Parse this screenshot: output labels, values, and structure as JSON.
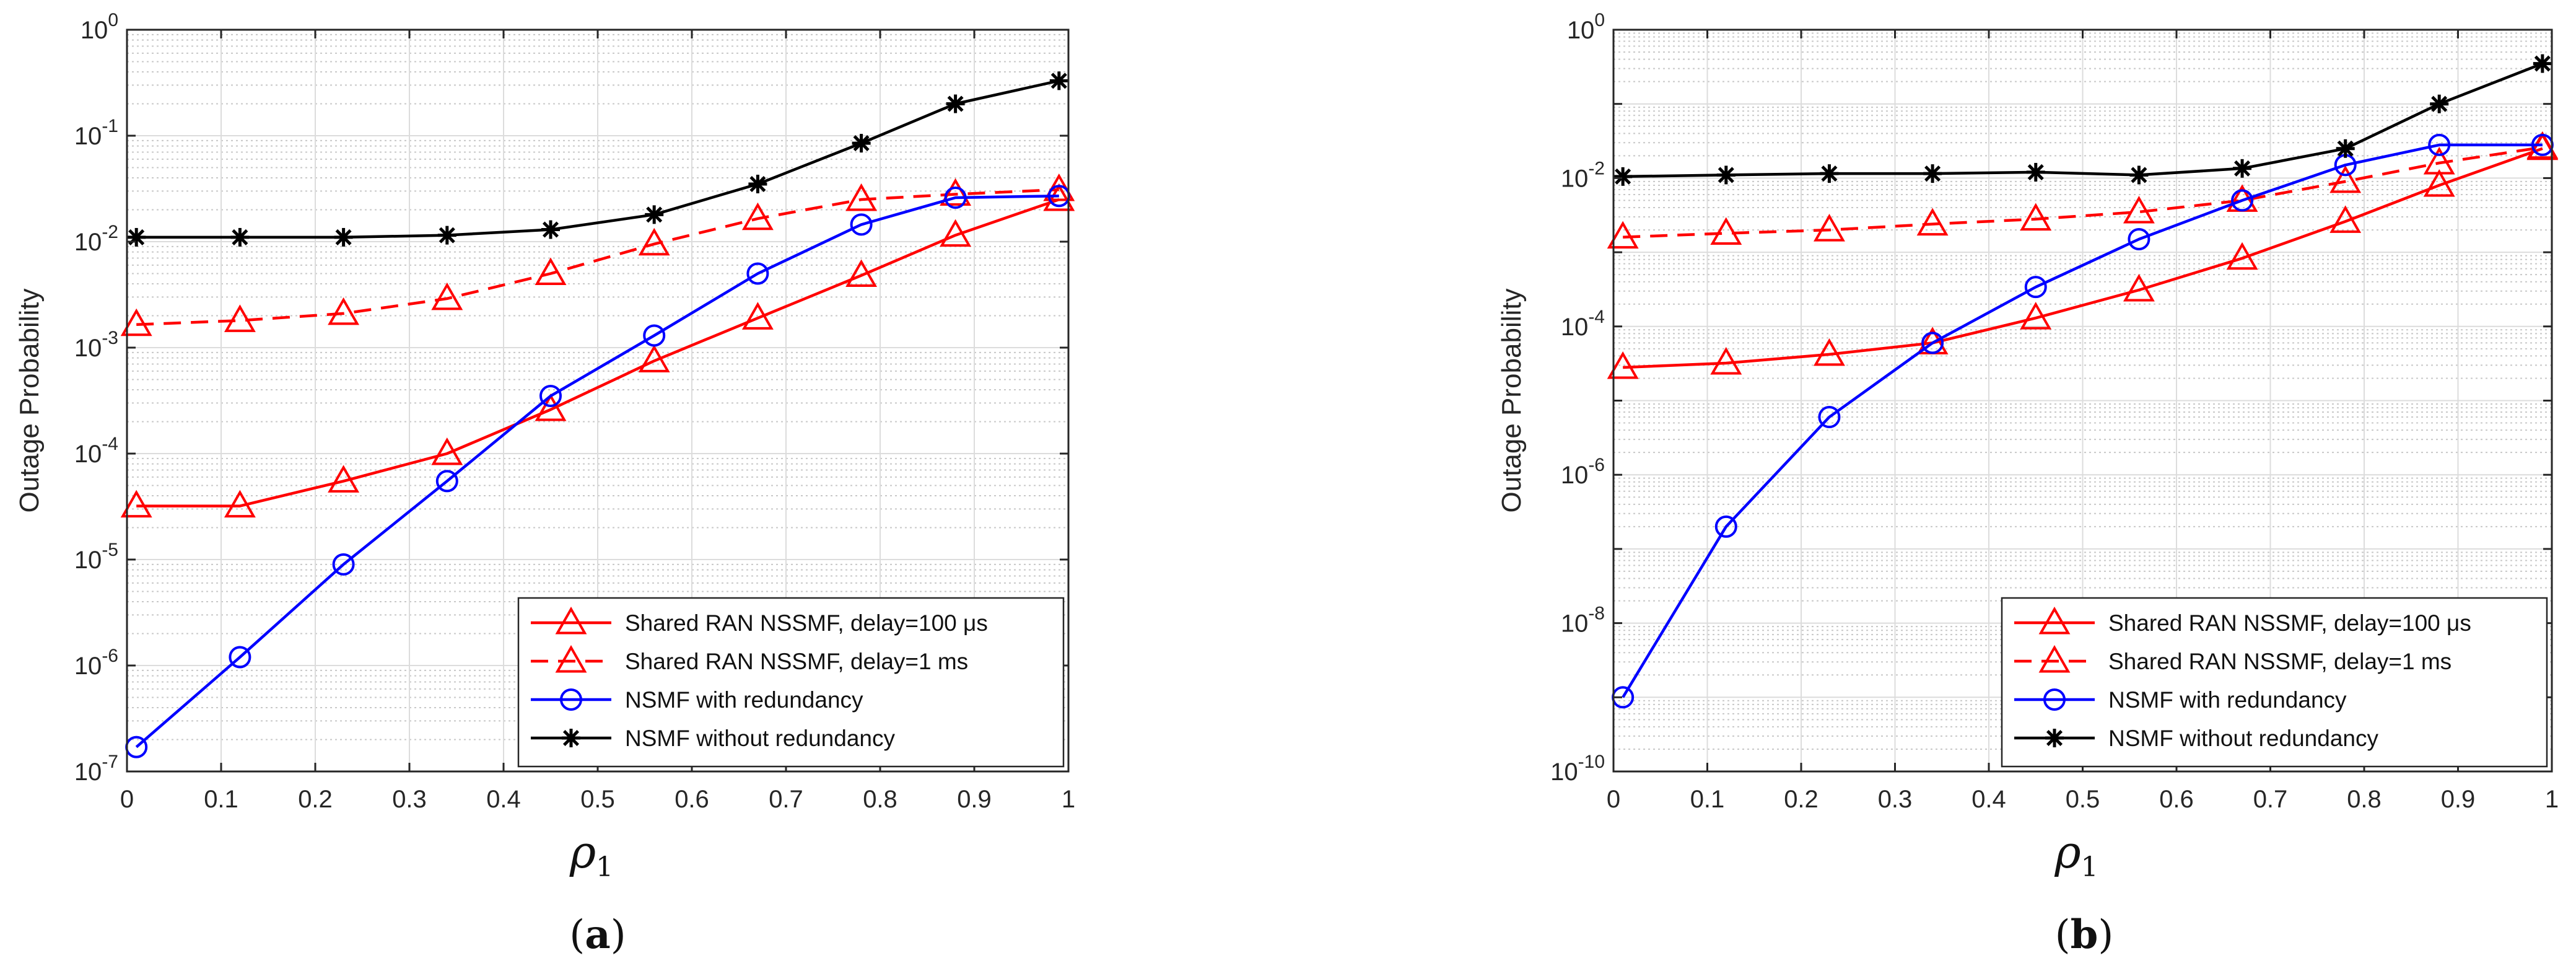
{
  "chart_data": [
    {
      "id": "a",
      "type": "line",
      "caption_letter": "a",
      "xlabel": "ρ",
      "xlabel_sub": "1",
      "ylabel": "Outage Probability",
      "xlim": [
        0,
        1
      ],
      "ylim_exp": [
        -7,
        0
      ],
      "yscale": "log",
      "grid": true,
      "legend_position": "bottom-right",
      "x_ticks": [
        "0",
        "0.1",
        "0.2",
        "0.3",
        "0.4",
        "0.5",
        "0.6",
        "0.7",
        "0.8",
        "0.9",
        "1"
      ],
      "x": [
        0.01,
        0.12,
        0.23,
        0.34,
        0.45,
        0.56,
        0.67,
        0.78,
        0.88,
        0.99
      ],
      "series": [
        {
          "name": "Shared RAN NSSMF, delay=100 μs",
          "color": "#ff0000",
          "dash": "solid",
          "marker": "triangle",
          "values": [
            3.2e-05,
            3.2e-05,
            5.5e-05,
            0.0001,
            0.00026,
            0.00075,
            0.0019,
            0.0048,
            0.0115,
            0.025
          ]
        },
        {
          "name": "Shared RAN NSSMF, delay=1 ms",
          "color": "#ff0000",
          "dash": "dashed",
          "marker": "triangle",
          "values": [
            0.00165,
            0.0018,
            0.0021,
            0.0029,
            0.005,
            0.0095,
            0.0165,
            0.025,
            0.028,
            0.031
          ]
        },
        {
          "name": "NSMF with redundancy",
          "color": "#0000ff",
          "dash": "solid",
          "marker": "circle",
          "values": [
            1.7e-07,
            1.2e-06,
            9e-06,
            5.5e-05,
            0.00035,
            0.0013,
            0.005,
            0.0145,
            0.026,
            0.027
          ]
        },
        {
          "name": "NSMF without redundancy",
          "color": "#000000",
          "dash": "solid",
          "marker": "star",
          "values": [
            0.011,
            0.011,
            0.011,
            0.0115,
            0.013,
            0.018,
            0.035,
            0.085,
            0.2,
            0.33
          ]
        }
      ]
    },
    {
      "id": "b",
      "type": "line",
      "caption_letter": "b",
      "xlabel": "ρ",
      "xlabel_sub": "1",
      "ylabel": "Outage Probability",
      "xlim": [
        0,
        1
      ],
      "ylim_exp": [
        -10,
        0
      ],
      "yscale": "log",
      "grid": true,
      "legend_position": "bottom-right",
      "x_ticks": [
        "0",
        "0.1",
        "0.2",
        "0.3",
        "0.4",
        "0.5",
        "0.6",
        "0.7",
        "0.8",
        "0.9",
        "1"
      ],
      "x": [
        0.01,
        0.12,
        0.23,
        0.34,
        0.45,
        0.56,
        0.67,
        0.78,
        0.88,
        0.99
      ],
      "series": [
        {
          "name": "Shared RAN NSSMF, delay=100 μs",
          "color": "#ff0000",
          "dash": "solid",
          "marker": "triangle",
          "values": [
            2.8e-05,
            3.2e-05,
            4.2e-05,
            6e-05,
            0.00013,
            0.00031,
            0.00083,
            0.0026,
            0.008,
            0.025
          ]
        },
        {
          "name": "Shared RAN NSSMF, delay=1 ms",
          "color": "#ff0000",
          "dash": "dashed",
          "marker": "triangle",
          "values": [
            0.0016,
            0.0018,
            0.002,
            0.0024,
            0.0028,
            0.0035,
            0.005,
            0.009,
            0.016,
            0.026
          ]
        },
        {
          "name": "NSMF with redundancy",
          "color": "#0000ff",
          "dash": "solid",
          "marker": "circle",
          "values": [
            1e-09,
            2e-07,
            6e-06,
            6e-05,
            0.00034,
            0.0015,
            0.005,
            0.015,
            0.028,
            0.028
          ]
        },
        {
          "name": "NSMF without redundancy",
          "color": "#000000",
          "dash": "solid",
          "marker": "star",
          "values": [
            0.0105,
            0.011,
            0.0115,
            0.0115,
            0.012,
            0.011,
            0.0135,
            0.025,
            0.1,
            0.35
          ]
        }
      ]
    }
  ]
}
